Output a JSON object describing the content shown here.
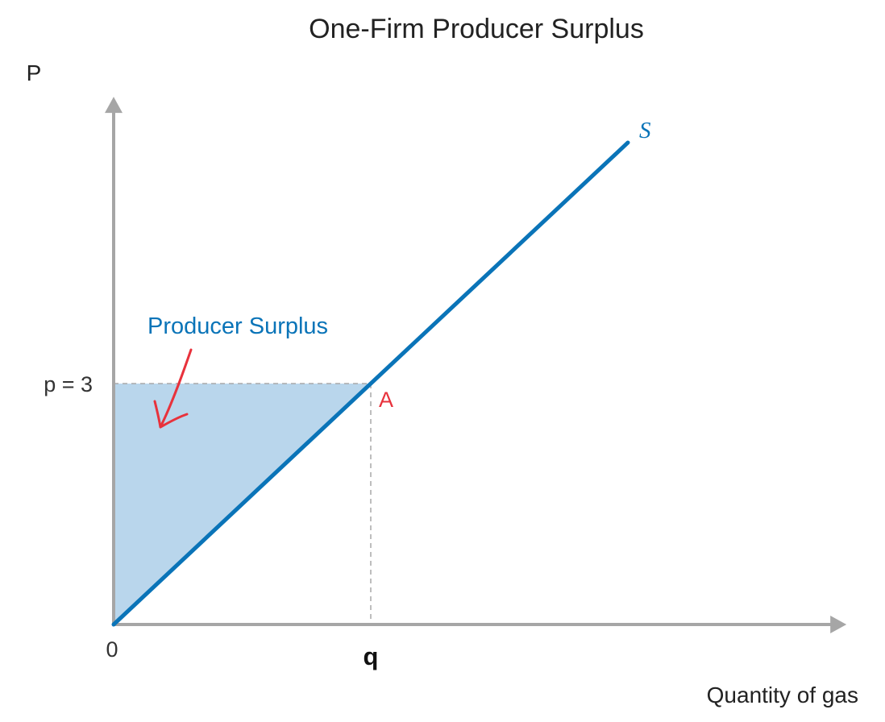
{
  "chart_data": {
    "type": "area",
    "title": "One-Firm Producer Surplus",
    "ylabel": "P",
    "xlabel": "Quantity of gas",
    "origin_label": "0",
    "price_tick_label": "p = 3",
    "quantity_tick_label": "q",
    "price": 3,
    "quantity_marker": 1,
    "xlim": [
      0,
      2.85
    ],
    "ylim": [
      0,
      6.57
    ],
    "series": [
      {
        "name": "S",
        "x": [
          0,
          2
        ],
        "y": [
          0,
          6
        ],
        "color": "#0a74b8"
      }
    ],
    "points": [
      {
        "label": "A",
        "x": 1,
        "y": 3,
        "color": "#e8323c"
      }
    ],
    "shaded_area": {
      "label": "Producer Surplus",
      "vertices": [
        [
          0,
          0
        ],
        [
          0,
          3
        ],
        [
          1,
          3
        ]
      ],
      "fill": "#b9d6ec",
      "label_color": "#0a74b8"
    },
    "annotation_arrow_color": "#e8323c",
    "axis_color": "#a6a6a6",
    "guide_color": "#a9a9a9"
  }
}
